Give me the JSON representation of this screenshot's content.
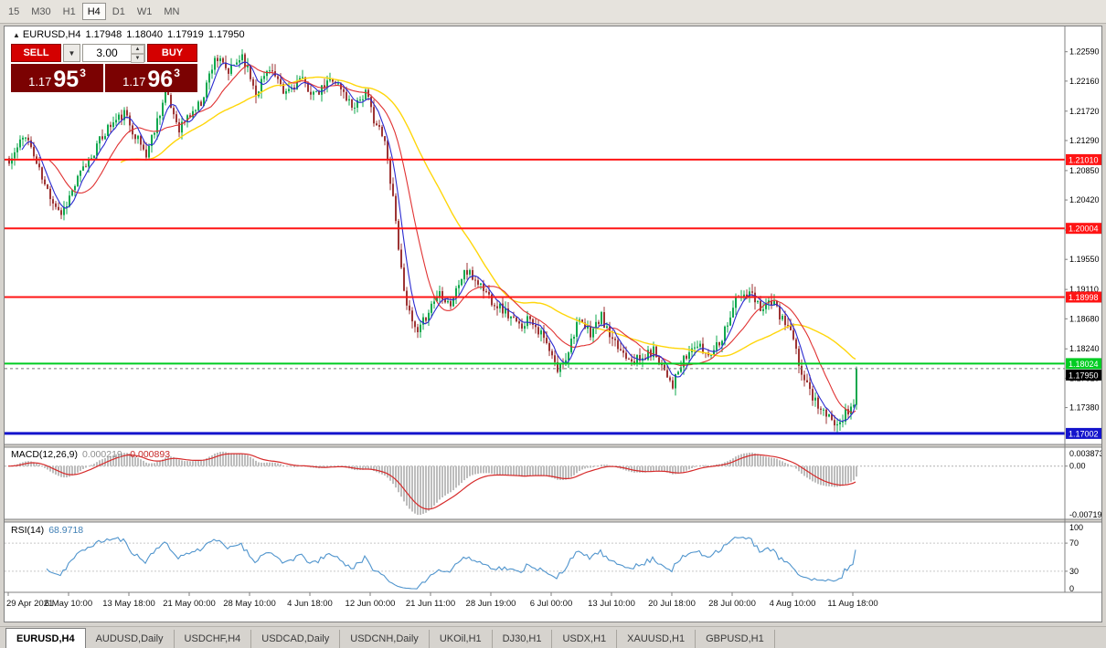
{
  "colors": {
    "accent-red": "#d40000",
    "panel-dark-red": "#7b0202",
    "up-green": "#0fa84e",
    "down-red": "#9d3434",
    "ma-fast-blue": "#2a2ad0",
    "ma-mid-red": "#e03232",
    "ma-slow-yellow": "#ffd60a",
    "macd-hist-gray": "#bdbdbd",
    "macd-signal-red": "#d62b2b",
    "rsi-blue": "#4f94cd"
  },
  "toolbar": {
    "timeframes": [
      {
        "label": "15",
        "active": false
      },
      {
        "label": "M30",
        "active": false
      },
      {
        "label": "H1",
        "active": false
      },
      {
        "label": "H4",
        "active": true
      },
      {
        "label": "D1",
        "active": false
      },
      {
        "label": "W1",
        "active": false
      },
      {
        "label": "MN",
        "active": false
      }
    ]
  },
  "chart_title": {
    "symbol": "EURUSD,H4",
    "open": "1.17948",
    "high": "1.18040",
    "low": "1.17919",
    "close": "1.17950"
  },
  "one_click": {
    "sell_label": "SELL",
    "buy_label": "BUY",
    "volume": "3.00",
    "sell_price": {
      "prefix": "1.17",
      "big": "95",
      "sup": "3"
    },
    "buy_price": {
      "prefix": "1.17",
      "big": "96",
      "sup": "3"
    }
  },
  "indicators": {
    "macd": {
      "name": "MACD(12,26,9)",
      "main_value": "0.000219",
      "signal_value": "-0.000893"
    },
    "rsi": {
      "name": "RSI(14)",
      "value": "68.9718"
    }
  },
  "bottom_tabs": [
    {
      "label": "EURUSD,H4",
      "active": true
    },
    {
      "label": "AUDUSD,Daily",
      "active": false
    },
    {
      "label": "USDCHF,H4",
      "active": false
    },
    {
      "label": "USDCAD,Daily",
      "active": false
    },
    {
      "label": "USDCNH,Daily",
      "active": false
    },
    {
      "label": "UKOil,H1",
      "active": false
    },
    {
      "label": "DJ30,H1",
      "active": false
    },
    {
      "label": "USDX,H1",
      "active": false
    },
    {
      "label": "XAUUSD,H1",
      "active": false
    },
    {
      "label": "GBPUSD,H1",
      "active": false
    }
  ],
  "chart_data": {
    "type": "candlestick",
    "symbol": "EURUSD",
    "timeframe": "H4",
    "num_candles": 310,
    "price_axis": {
      "top": 1.2296,
      "bottom": 1.1684,
      "ticks": [
        1.2259,
        1.2216,
        1.2172,
        1.2129,
        1.2085,
        1.2042,
        1.1998,
        1.1955,
        1.1911,
        1.1868,
        1.1824,
        1.1781,
        1.1738
      ]
    },
    "hlines": [
      {
        "price": 1.2101,
        "label": "1.21010",
        "color": "#ff1414",
        "width": 2
      },
      {
        "price": 1.20004,
        "label": "1.20004",
        "color": "#ff1414",
        "width": 2
      },
      {
        "price": 1.18998,
        "label": "1.18998",
        "color": "#ff1414",
        "width": 2
      },
      {
        "price": 1.18024,
        "label": "1.18024",
        "color": "#00cc22",
        "width": 2
      },
      {
        "price": 1.17002,
        "label": "1.17002",
        "color": "#1414cc",
        "width": 3
      }
    ],
    "current_price": {
      "value": 1.1795,
      "label": "1.17950"
    },
    "ma_periods": [
      6,
      16,
      42
    ],
    "macd_axis": [
      "0.003873",
      "0.00",
      "-0.00719"
    ],
    "rsi_axis": [
      "100",
      "70",
      "30",
      "0"
    ],
    "rsi_levels": [
      70,
      30
    ],
    "close_path_anchors": [
      [
        0,
        1.2095
      ],
      [
        6,
        1.214
      ],
      [
        13,
        1.2062
      ],
      [
        19,
        1.2022
      ],
      [
        26,
        1.208
      ],
      [
        36,
        1.2148
      ],
      [
        42,
        1.2168
      ],
      [
        50,
        1.2108
      ],
      [
        57,
        1.2198
      ],
      [
        62,
        1.2148
      ],
      [
        70,
        1.2185
      ],
      [
        75,
        1.2252
      ],
      [
        80,
        1.2228
      ],
      [
        85,
        1.2255
      ],
      [
        90,
        1.22
      ],
      [
        95,
        1.2238
      ],
      [
        100,
        1.2196
      ],
      [
        106,
        1.2218
      ],
      [
        112,
        1.2194
      ],
      [
        118,
        1.2222
      ],
      [
        125,
        1.218
      ],
      [
        130,
        1.2198
      ],
      [
        133,
        1.2162
      ],
      [
        137,
        1.2125
      ],
      [
        140,
        1.2048
      ],
      [
        143,
        1.1938
      ],
      [
        146,
        1.1872
      ],
      [
        149,
        1.1843
      ],
      [
        153,
        1.1882
      ],
      [
        157,
        1.1908
      ],
      [
        161,
        1.189
      ],
      [
        166,
        1.1938
      ],
      [
        171,
        1.1922
      ],
      [
        176,
        1.1896
      ],
      [
        181,
        1.1878
      ],
      [
        186,
        1.1856
      ],
      [
        190,
        1.1872
      ],
      [
        195,
        1.1838
      ],
      [
        200,
        1.1792
      ],
      [
        203,
        1.1812
      ],
      [
        207,
        1.1862
      ],
      [
        212,
        1.1848
      ],
      [
        216,
        1.187
      ],
      [
        220,
        1.1832
      ],
      [
        225,
        1.1816
      ],
      [
        230,
        1.1806
      ],
      [
        235,
        1.1822
      ],
      [
        240,
        1.1788
      ],
      [
        242,
        1.1772
      ],
      [
        246,
        1.1806
      ],
      [
        250,
        1.183
      ],
      [
        255,
        1.1816
      ],
      [
        260,
        1.1842
      ],
      [
        265,
        1.1896
      ],
      [
        270,
        1.1904
      ],
      [
        274,
        1.1886
      ],
      [
        278,
        1.1894
      ],
      [
        282,
        1.1866
      ],
      [
        285,
        1.185
      ],
      [
        288,
        1.18
      ],
      [
        292,
        1.1762
      ],
      [
        296,
        1.1736
      ],
      [
        300,
        1.1716
      ],
      [
        303,
        1.1722
      ],
      [
        306,
        1.1732
      ],
      [
        308,
        1.1742
      ],
      [
        309,
        1.1795
      ]
    ],
    "time_labels": [
      "29 Apr 2021",
      "6 May 10:00",
      "13 May 18:00",
      "21 May 00:00",
      "28 May 10:00",
      "4 Jun 18:00",
      "12 Jun 00:00",
      "21 Jun 11:00",
      "28 Jun 19:00",
      "6 Jul 00:00",
      "13 Jul 10:00",
      "20 Jul 18:00",
      "28 Jul 00:00",
      "4 Aug 10:00",
      "11 Aug 18:00"
    ]
  }
}
